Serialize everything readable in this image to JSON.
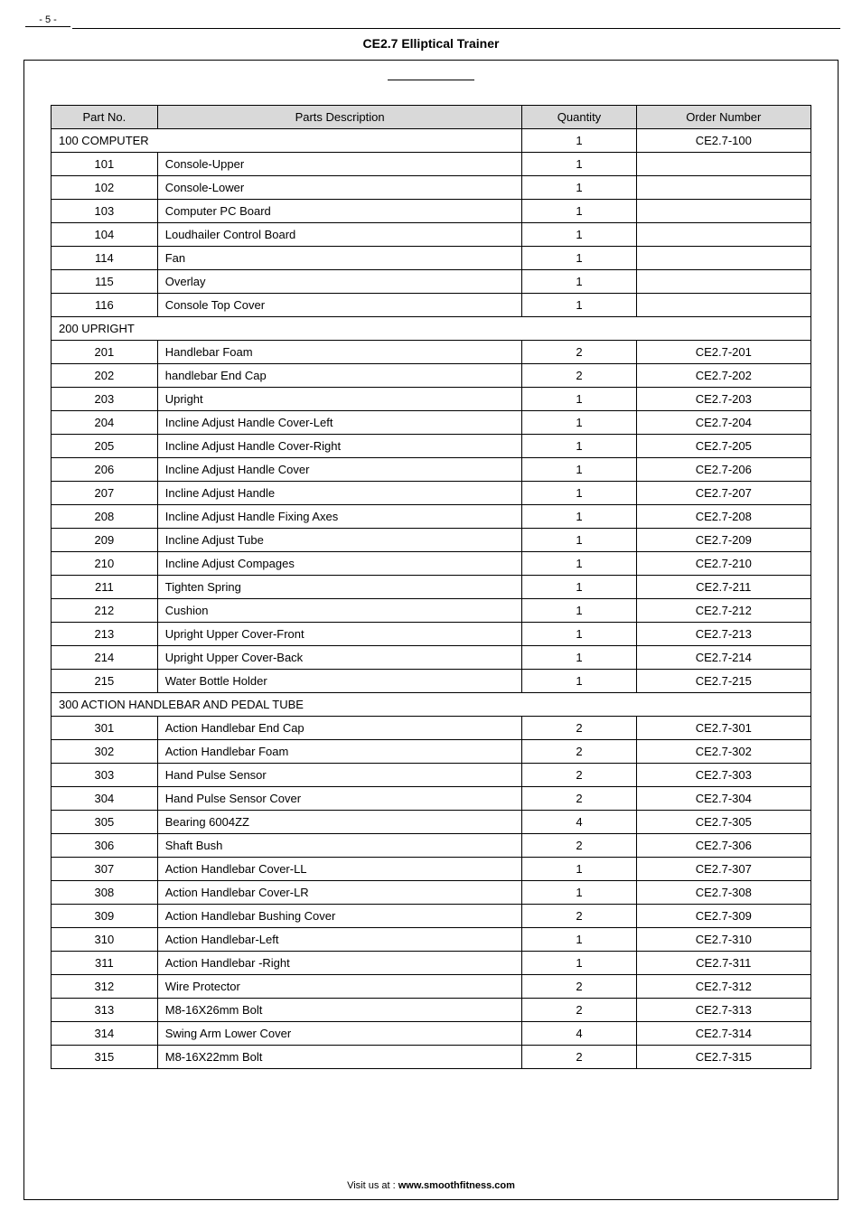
{
  "page_number": "- 5 -",
  "doc_title": "CE2.7 Elliptical Trainer",
  "footer_prefix": "Visit us at : ",
  "footer_site": "www.smoothfitness.com",
  "headers": {
    "partno": "Part No.",
    "desc": "Parts Description",
    "qty": "Quantity",
    "ord": "Order Number"
  },
  "rows": [
    {
      "type": "section_with_vals",
      "partno": "100 COMPUTER",
      "qty": "1",
      "ord": "CE2.7-100"
    },
    {
      "type": "row",
      "partno": "101",
      "desc": "Console-Upper",
      "qty": "1",
      "ord": ""
    },
    {
      "type": "row",
      "partno": "102",
      "desc": "Console-Lower",
      "qty": "1",
      "ord": ""
    },
    {
      "type": "row",
      "partno": "103",
      "desc": "Computer PC Board",
      "qty": "1",
      "ord": ""
    },
    {
      "type": "row",
      "partno": "104",
      "desc": "Loudhailer Control Board",
      "qty": "1",
      "ord": ""
    },
    {
      "type": "row",
      "partno": "114",
      "desc": "Fan",
      "qty": "1",
      "ord": ""
    },
    {
      "type": "row",
      "partno": "115",
      "desc": "Overlay",
      "qty": "1",
      "ord": ""
    },
    {
      "type": "row",
      "partno": "116",
      "desc": "Console Top Cover",
      "qty": "1",
      "ord": ""
    },
    {
      "type": "section_full",
      "label": "200 UPRIGHT"
    },
    {
      "type": "row",
      "partno": "201",
      "desc": "Handlebar Foam",
      "qty": "2",
      "ord": "CE2.7-201"
    },
    {
      "type": "row",
      "partno": "202",
      "desc": "handlebar End Cap",
      "qty": "2",
      "ord": "CE2.7-202"
    },
    {
      "type": "row",
      "partno": "203",
      "desc": "Upright",
      "qty": "1",
      "ord": "CE2.7-203"
    },
    {
      "type": "row",
      "partno": "204",
      "desc": "Incline Adjust Handle Cover-Left",
      "qty": "1",
      "ord": "CE2.7-204"
    },
    {
      "type": "row",
      "partno": "205",
      "desc": "Incline Adjust Handle Cover-Right",
      "qty": "1",
      "ord": "CE2.7-205"
    },
    {
      "type": "row",
      "partno": "206",
      "desc": "Incline Adjust Handle Cover",
      "qty": "1",
      "ord": "CE2.7-206"
    },
    {
      "type": "row",
      "partno": "207",
      "desc": "Incline Adjust Handle",
      "qty": "1",
      "ord": "CE2.7-207"
    },
    {
      "type": "row",
      "partno": "208",
      "desc": "Incline Adjust Handle Fixing Axes",
      "qty": "1",
      "ord": "CE2.7-208"
    },
    {
      "type": "row",
      "partno": "209",
      "desc": "Incline Adjust Tube",
      "qty": "1",
      "ord": "CE2.7-209"
    },
    {
      "type": "row",
      "partno": "210",
      "desc": "Incline Adjust Compages",
      "qty": "1",
      "ord": "CE2.7-210"
    },
    {
      "type": "row",
      "partno": "211",
      "desc": "Tighten Spring",
      "qty": "1",
      "ord": "CE2.7-211"
    },
    {
      "type": "row",
      "partno": "212",
      "desc": "Cushion",
      "qty": "1",
      "ord": "CE2.7-212"
    },
    {
      "type": "row",
      "partno": "213",
      "desc": "Upright Upper Cover-Front",
      "qty": "1",
      "ord": "CE2.7-213"
    },
    {
      "type": "row",
      "partno": "214",
      "desc": "Upright Upper Cover-Back",
      "qty": "1",
      "ord": "CE2.7-214"
    },
    {
      "type": "row",
      "partno": "215",
      "desc": "Water Bottle Holder",
      "qty": "1",
      "ord": "CE2.7-215"
    },
    {
      "type": "section_full",
      "label": "300 ACTION HANDLEBAR AND PEDAL TUBE"
    },
    {
      "type": "row",
      "partno": "301",
      "desc": "Action Handlebar End Cap",
      "qty": "2",
      "ord": "CE2.7-301"
    },
    {
      "type": "row",
      "partno": "302",
      "desc": "Action Handlebar Foam",
      "qty": "2",
      "ord": "CE2.7-302"
    },
    {
      "type": "row",
      "partno": "303",
      "desc": "Hand Pulse Sensor",
      "qty": "2",
      "ord": "CE2.7-303"
    },
    {
      "type": "row",
      "partno": "304",
      "desc": "Hand Pulse Sensor Cover",
      "qty": "2",
      "ord": "CE2.7-304"
    },
    {
      "type": "row",
      "partno": "305",
      "desc": "Bearing 6004ZZ",
      "qty": "4",
      "ord": "CE2.7-305"
    },
    {
      "type": "row",
      "partno": "306",
      "desc": "Shaft Bush",
      "qty": "2",
      "ord": "CE2.7-306"
    },
    {
      "type": "row",
      "partno": "307",
      "desc": "Action Handlebar Cover-LL",
      "qty": "1",
      "ord": "CE2.7-307"
    },
    {
      "type": "row",
      "partno": "308",
      "desc": "Action Handlebar Cover-LR",
      "qty": "1",
      "ord": "CE2.7-308"
    },
    {
      "type": "row",
      "partno": "309",
      "desc": "Action Handlebar Bushing Cover",
      "qty": "2",
      "ord": "CE2.7-309"
    },
    {
      "type": "row",
      "partno": "310",
      "desc": "Action Handlebar-Left",
      "qty": "1",
      "ord": "CE2.7-310"
    },
    {
      "type": "row",
      "partno": "311",
      "desc": "Action Handlebar -Right",
      "qty": "1",
      "ord": "CE2.7-311"
    },
    {
      "type": "row",
      "partno": "312",
      "desc": "Wire Protector",
      "qty": "2",
      "ord": "CE2.7-312"
    },
    {
      "type": "row",
      "partno": "313",
      "desc": "M8-16X26mm Bolt",
      "qty": "2",
      "ord": "CE2.7-313"
    },
    {
      "type": "row",
      "partno": "314",
      "desc": "Swing Arm Lower Cover",
      "qty": "4",
      "ord": "CE2.7-314"
    },
    {
      "type": "row",
      "partno": "315",
      "desc": "M8-16X22mm Bolt",
      "qty": "2",
      "ord": "CE2.7-315"
    }
  ]
}
